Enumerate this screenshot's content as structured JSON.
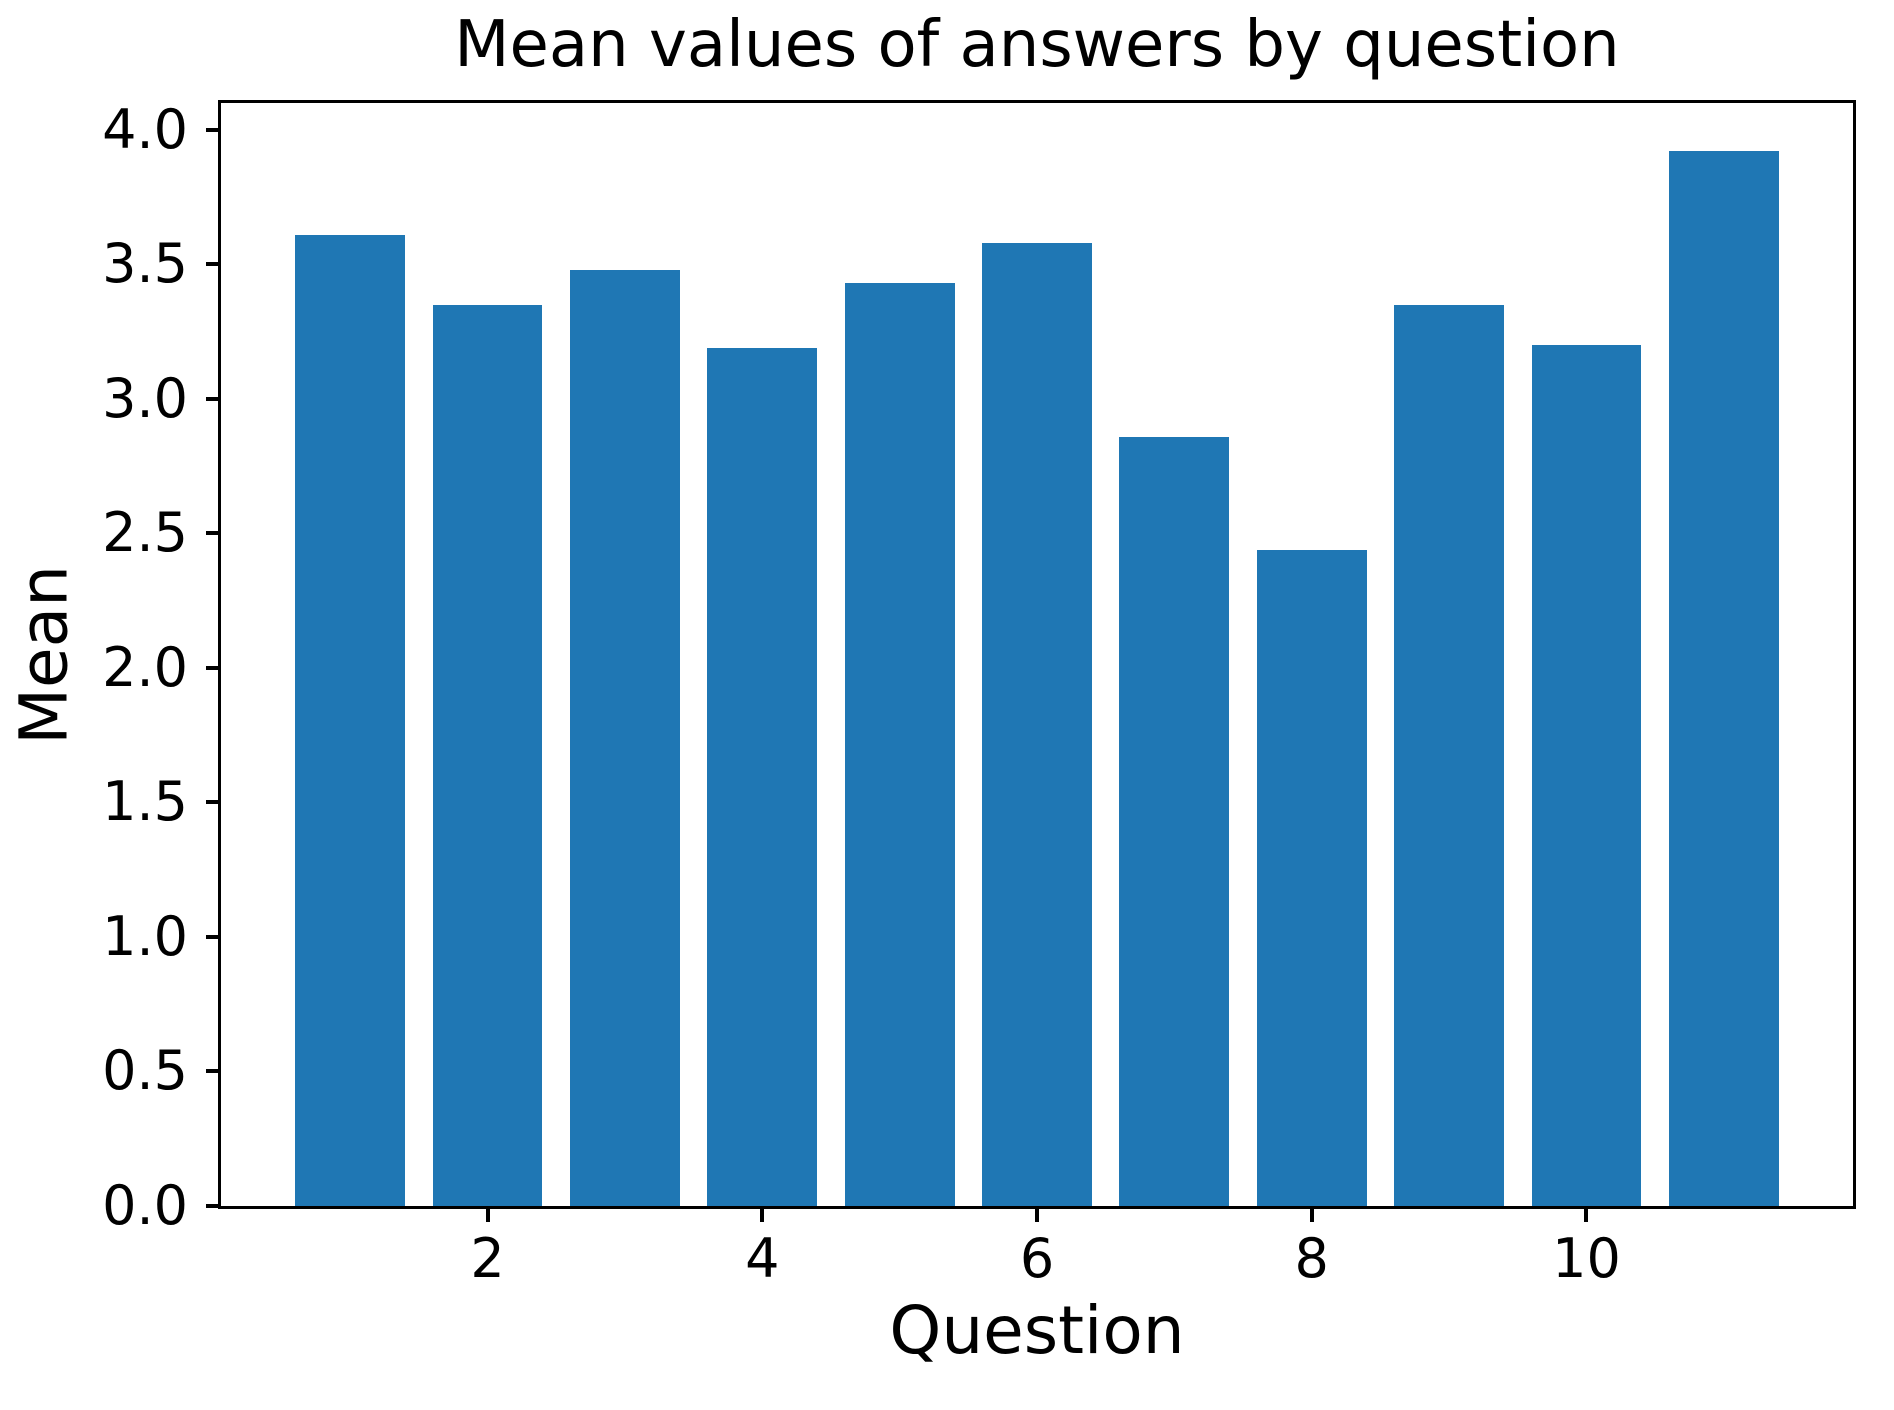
{
  "chart_data": {
    "type": "bar",
    "title": "Mean values of answers by question",
    "xlabel": "Question",
    "ylabel": "Mean",
    "x": [
      1,
      2,
      3,
      4,
      5,
      6,
      7,
      8,
      9,
      10,
      11
    ],
    "values": [
      3.61,
      3.35,
      3.48,
      3.19,
      3.43,
      3.58,
      2.86,
      2.44,
      3.35,
      3.2,
      3.92
    ],
    "bar_color": "#1f77b4",
    "bar_width_units": 0.8,
    "xlim": [
      0.06,
      11.94
    ],
    "ylim": [
      0.0,
      4.1
    ],
    "yticks": [
      0.0,
      0.5,
      1.0,
      1.5,
      2.0,
      2.5,
      3.0,
      3.5,
      4.0
    ],
    "ytick_labels": [
      "0.0",
      "0.5",
      "1.0",
      "1.5",
      "2.0",
      "2.5",
      "3.0",
      "3.5",
      "4.0"
    ],
    "xticks": [
      2,
      4,
      6,
      8,
      10
    ],
    "xtick_labels": [
      "2",
      "4",
      "6",
      "8",
      "10"
    ],
    "grid": false,
    "legend_position": "none"
  }
}
